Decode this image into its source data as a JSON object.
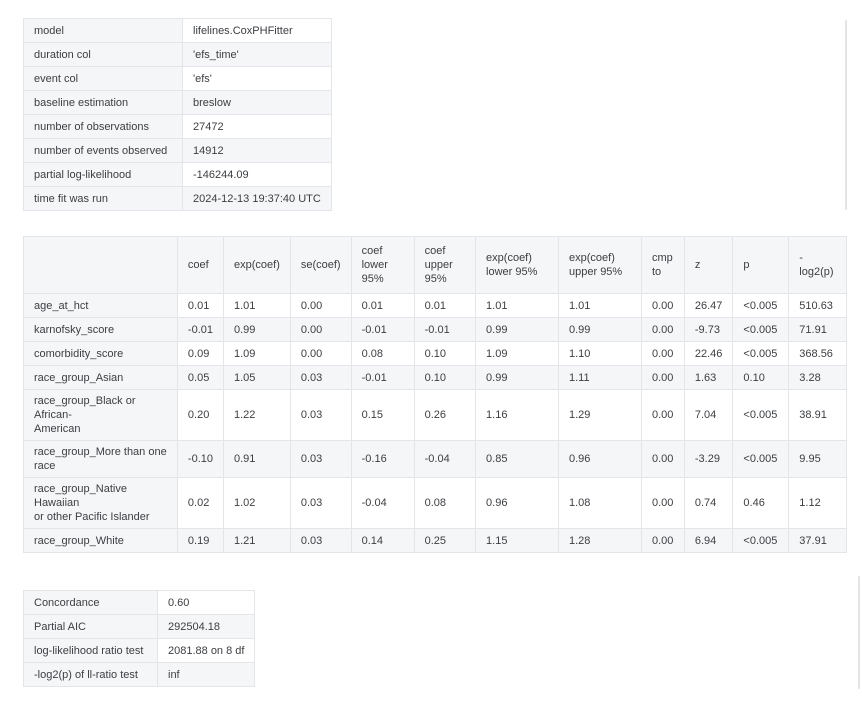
{
  "model_summary": {
    "rows": [
      {
        "label": "model",
        "value": "lifelines.CoxPHFitter"
      },
      {
        "label": "duration col",
        "value": "'efs_time'"
      },
      {
        "label": "event col",
        "value": "'efs'"
      },
      {
        "label": "baseline estimation",
        "value": "breslow"
      },
      {
        "label": "number of observations",
        "value": "27472"
      },
      {
        "label": "number of events observed",
        "value": "14912"
      },
      {
        "label": "partial log-likelihood",
        "value": "-146244.09"
      },
      {
        "label": "time fit was run",
        "value": "2024-12-13 19:37:40 UTC"
      }
    ]
  },
  "coefficients": {
    "columns": [
      "",
      "coef",
      "exp(coef)",
      "se(coef)",
      "coef\nlower\n95%",
      "coef\nupper\n95%",
      "exp(coef)\nlower 95%",
      "exp(coef)\nupper 95%",
      "cmp\nto",
      "z",
      "p",
      "-\nlog2(p)"
    ],
    "rows": [
      {
        "name": "age_at_hct",
        "values": [
          "0.01",
          "1.01",
          "0.00",
          "0.01",
          "0.01",
          "1.01",
          "1.01",
          "0.00",
          "26.47",
          "<0.005",
          "510.63"
        ]
      },
      {
        "name": "karnofsky_score",
        "values": [
          "-0.01",
          "0.99",
          "0.00",
          "-0.01",
          "-0.01",
          "0.99",
          "0.99",
          "0.00",
          "-9.73",
          "<0.005",
          "71.91"
        ]
      },
      {
        "name": "comorbidity_score",
        "values": [
          "0.09",
          "1.09",
          "0.00",
          "0.08",
          "0.10",
          "1.09",
          "1.10",
          "0.00",
          "22.46",
          "<0.005",
          "368.56"
        ]
      },
      {
        "name": "race_group_Asian",
        "values": [
          "0.05",
          "1.05",
          "0.03",
          "-0.01",
          "0.10",
          "0.99",
          "1.11",
          "0.00",
          "1.63",
          "0.10",
          "3.28"
        ]
      },
      {
        "name": "race_group_Black or African-\nAmerican",
        "values": [
          "0.20",
          "1.22",
          "0.03",
          "0.15",
          "0.26",
          "1.16",
          "1.29",
          "0.00",
          "7.04",
          "<0.005",
          "38.91"
        ]
      },
      {
        "name": "race_group_More than one\nrace",
        "values": [
          "-0.10",
          "0.91",
          "0.03",
          "-0.16",
          "-0.04",
          "0.85",
          "0.96",
          "0.00",
          "-3.29",
          "<0.005",
          "9.95"
        ]
      },
      {
        "name": "race_group_Native Hawaiian\nor other Pacific Islander",
        "values": [
          "0.02",
          "1.02",
          "0.03",
          "-0.04",
          "0.08",
          "0.96",
          "1.08",
          "0.00",
          "0.74",
          "0.46",
          "1.12"
        ]
      },
      {
        "name": "race_group_White",
        "values": [
          "0.19",
          "1.21",
          "0.03",
          "0.14",
          "0.25",
          "1.15",
          "1.28",
          "0.00",
          "6.94",
          "<0.005",
          "37.91"
        ]
      }
    ]
  },
  "stats": {
    "rows": [
      {
        "label": "Concordance",
        "value": "0.60"
      },
      {
        "label": "Partial AIC",
        "value": "292504.18"
      },
      {
        "label": "log-likelihood ratio test",
        "value": "2081.88 on 8 df"
      },
      {
        "label": "-log2(p) of ll-ratio test",
        "value": "inf"
      }
    ]
  }
}
